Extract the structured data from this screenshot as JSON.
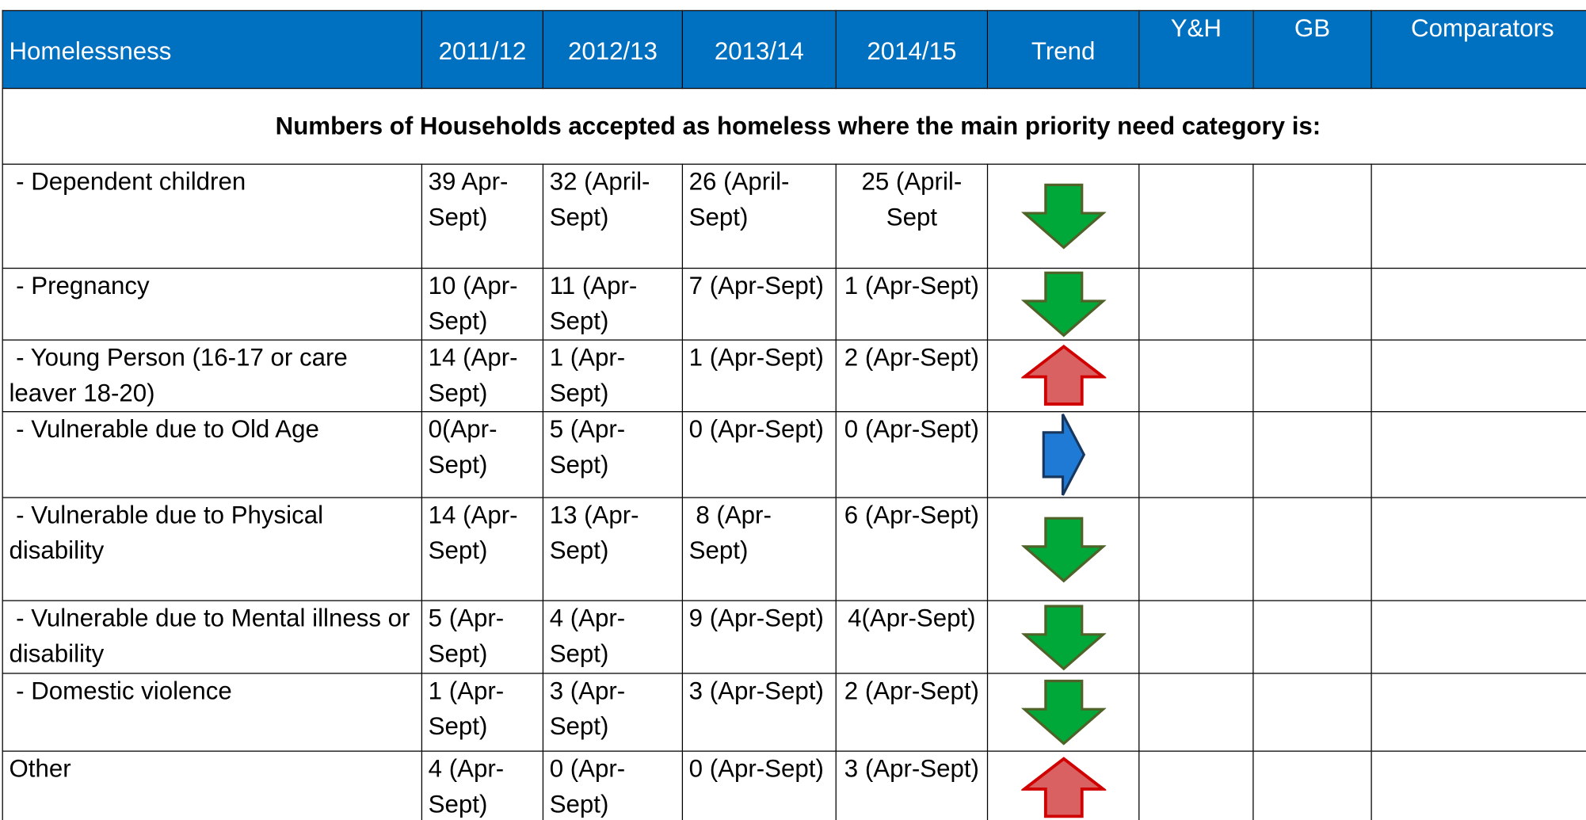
{
  "table": {
    "header": [
      "Homelessness",
      "2011/12",
      "2012/13",
      "2013/14",
      "2014/15",
      "Trend",
      "Y&H",
      "GB",
      "Comparators"
    ],
    "subheading": "Numbers of Households accepted as homeless where the main priority need category is:",
    "rows": [
      {
        "label": " - Dependent children",
        "values": [
          "39 Apr-Sept)",
          "32 (April-Sept)",
          "26 (April-Sept)",
          "25 (April-Sept"
        ]
      },
      {
        "label": " - Pregnancy",
        "values": [
          "10 (Apr-Sept)",
          "11 (Apr-Sept)",
          "7 (Apr-Sept)",
          "1 (Apr-Sept)"
        ]
      },
      {
        "label": " - Young Person (16-17 or care leaver 18-20)",
        "values": [
          "14 (Apr-Sept)",
          "1 (Apr-Sept)",
          "1 (Apr-Sept)",
          "2 (Apr-Sept)"
        ]
      },
      {
        "label": " - Vulnerable due to Old Age",
        "values": [
          "0(Apr-Sept)",
          "5 (Apr-Sept)",
          "0 (Apr-Sept)",
          "0 (Apr-Sept)"
        ]
      },
      {
        "label": " - Vulnerable due to Physical disability",
        "values": [
          "14 (Apr-Sept)",
          "13 (Apr-Sept)",
          " 8 (Apr-Sept)",
          "6 (Apr-Sept)"
        ]
      },
      {
        "label": " - Vulnerable due to Mental illness or disability",
        "values": [
          "5 (Apr-Sept)",
          "4 (Apr-Sept)",
          "9 (Apr-Sept)",
          "4(Apr-Sept)"
        ]
      },
      {
        "label": " - Domestic violence",
        "values": [
          "1 (Apr-Sept)",
          "3 (Apr-Sept)",
          "3 (Apr-Sept)",
          "2 (Apr-Sept)"
        ]
      },
      {
        "label": "Other",
        "values": [
          "4 (Apr-Sept)",
          "0 (Apr-Sept)",
          "0 (Apr-Sept)",
          "3 (Apr-Sept)"
        ]
      }
    ]
  }
}
